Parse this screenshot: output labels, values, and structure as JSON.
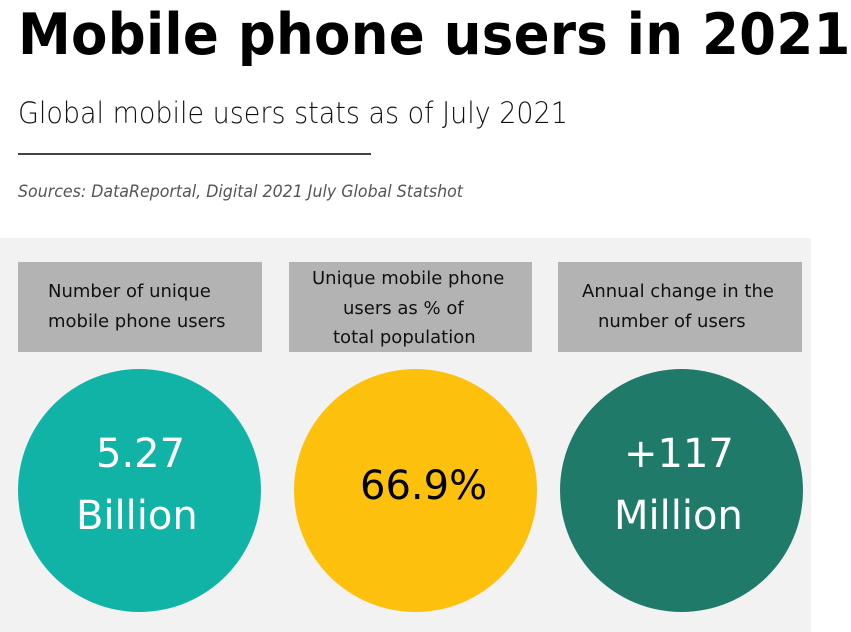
{
  "header": {
    "title": "Mobile phone users in 2021",
    "subtitle": "Global mobile users stats as of July 2021",
    "sources": "Sources: DataReportal, Digital 2021 July Global Statshot"
  },
  "stats": [
    {
      "label_lines": [
        "Number of unique",
        "mobile phone users"
      ],
      "value_lines": [
        "5.27",
        "Billion"
      ],
      "color": "#11b3a6",
      "text_color": "#ffffff"
    },
    {
      "label_lines": [
        "Unique mobile phone",
        "users as % of",
        "total population"
      ],
      "value_lines": [
        "66.9%"
      ],
      "color": "#fdc00d",
      "text_color": "#000000"
    },
    {
      "label_lines": [
        "Annual change in the",
        "number of users"
      ],
      "value_lines": [
        "+117",
        "Million"
      ],
      "color": "#1f7a69",
      "text_color": "#ffffff"
    }
  ]
}
